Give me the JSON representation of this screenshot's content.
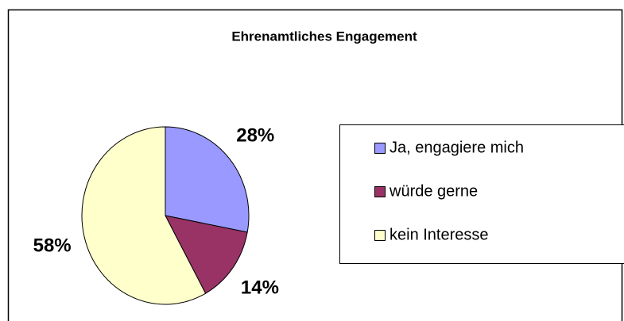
{
  "chart_data": {
    "type": "pie",
    "title": "Ehrenamtliches Engagement",
    "categories": [
      "Ja, engagiere mich",
      "würde gerne",
      "kein Interesse"
    ],
    "values": [
      28,
      14,
      58
    ],
    "value_labels": [
      "28%",
      "14%",
      "58%"
    ],
    "colors": [
      "#9999ff",
      "#993366",
      "#ffffcc"
    ],
    "legend": "right"
  }
}
